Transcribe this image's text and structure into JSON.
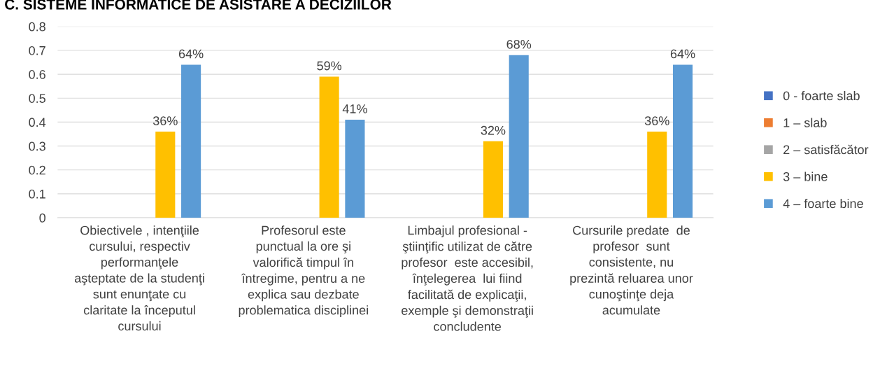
{
  "chart_data": {
    "type": "bar",
    "title": "C. SISTEME INFORMATICE DE ASISTARE A DECIZIILOR",
    "categories": [
      "Obiectivele , intenţiile\ncursului, respectiv\nperformanţele\naşteptate de la studenţi\nsunt enunţate cu\nclaritate la începutul\ncursului",
      "Profesorul este\npunctual la ore şi\nvalorifică timpul în\nîntregime, pentru a ne\nexplica sau dezbate\nproblematica disciplinei",
      "Limbajul profesional -\nştiinţific utilizat de către\nprofesor  este accesibil,\nînţelegerea  lui fiind\nfacilitată de explicaţii,\nexemple şi demonstraţii\nconcludente",
      "Cursurile predate  de\nprofesor  sunt\nconsistente, nu\nprezintă reluarea unor\ncunoştinţe deja\nacumulate"
    ],
    "series": [
      {
        "name": "0 - foarte slab",
        "color": "#4472c4",
        "values": [
          0,
          0,
          0,
          0
        ]
      },
      {
        "name": "1 – slab",
        "color": "#ed7d31",
        "values": [
          0,
          0,
          0,
          0
        ]
      },
      {
        "name": "2 – satisfăcător",
        "color": "#a5a5a5",
        "values": [
          0,
          0,
          0,
          0
        ]
      },
      {
        "name": "3 – bine",
        "color": "#ffc000",
        "values": [
          0.36,
          0.59,
          0.32,
          0.36
        ],
        "value_labels": [
          "36%",
          "59%",
          "32%",
          "36%"
        ]
      },
      {
        "name": "4 – foarte bine",
        "color": "#5b9bd5",
        "values": [
          0.64,
          0.41,
          0.68,
          0.64
        ],
        "value_labels": [
          "64%",
          "41%",
          "68%",
          "64%"
        ]
      }
    ],
    "ylim": [
      0,
      0.8
    ],
    "yticks": [
      0,
      0.1,
      0.2,
      0.3,
      0.4,
      0.5,
      0.6,
      0.7,
      0.8
    ],
    "grid": "y",
    "legend": "right"
  }
}
